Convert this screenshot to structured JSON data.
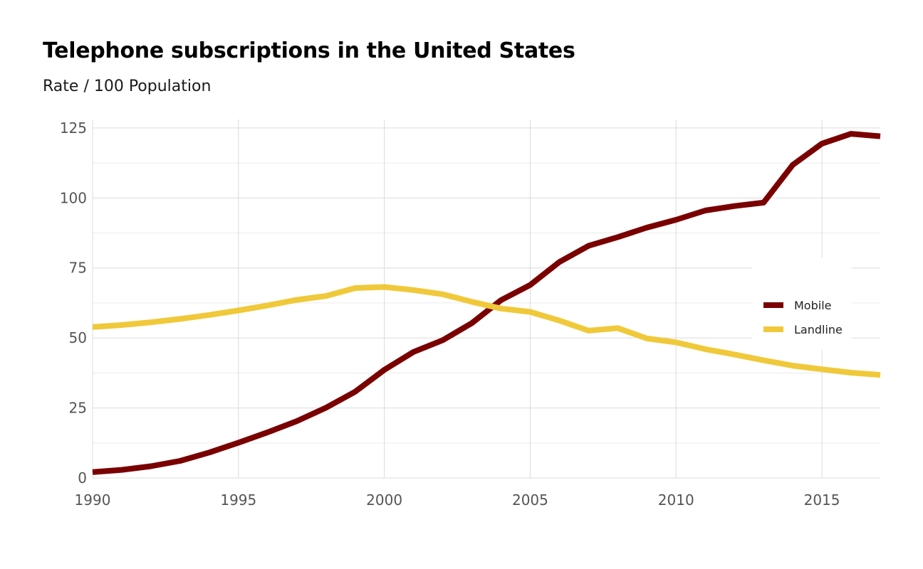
{
  "chart_data": {
    "type": "line",
    "title": "Telephone subscriptions in the United States",
    "subtitle": "Rate / 100 Population",
    "xlabel": "",
    "ylabel": "",
    "xlim": [
      1990,
      2017
    ],
    "ylim": [
      0,
      128
    ],
    "x_ticks": [
      1990,
      1995,
      2000,
      2005,
      2010,
      2015
    ],
    "y_ticks": [
      0,
      25,
      50,
      75,
      100,
      125
    ],
    "grid": true,
    "legend_position": "right",
    "x": [
      1990,
      1991,
      1992,
      1993,
      1994,
      1995,
      1996,
      1997,
      1998,
      1999,
      2000,
      2001,
      2002,
      2003,
      2004,
      2005,
      2006,
      2007,
      2008,
      2009,
      2010,
      2011,
      2012,
      2013,
      2014,
      2015,
      2016,
      2017
    ],
    "series": [
      {
        "name": "Mobile",
        "color": "#7a0000",
        "values": [
          2.1,
          2.9,
          4.2,
          6.1,
          9.1,
          12.6,
          16.3,
          20.3,
          25.1,
          30.8,
          38.6,
          45.0,
          49.2,
          55.3,
          63.5,
          68.9,
          77.1,
          82.9,
          86.0,
          89.4,
          92.2,
          95.5,
          97.1,
          98.3,
          111.8,
          119.4,
          122.9,
          122.0
        ]
      },
      {
        "name": "Landline",
        "color": "#f0c93a",
        "values": [
          53.9,
          54.6,
          55.6,
          56.8,
          58.2,
          59.8,
          61.6,
          63.6,
          65.0,
          67.8,
          68.2,
          67.1,
          65.6,
          62.9,
          60.5,
          59.3,
          56.2,
          52.6,
          53.5,
          49.8,
          48.4,
          46.0,
          44.1,
          42.0,
          40.1,
          38.8,
          37.6,
          36.8
        ]
      }
    ]
  }
}
